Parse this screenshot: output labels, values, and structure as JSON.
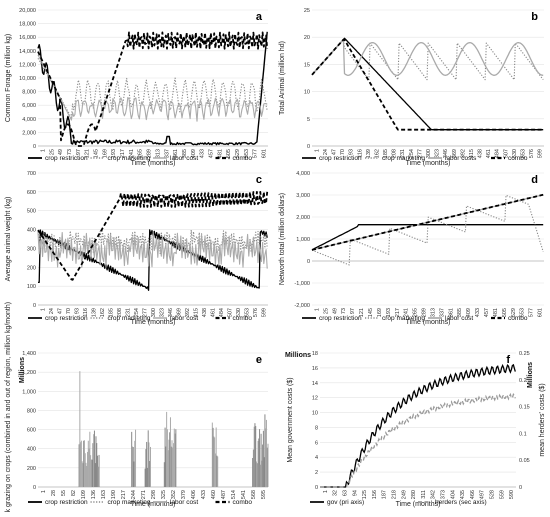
{
  "chart_data": [
    {
      "id": "a",
      "type": "line",
      "letter": "a",
      "ylabel": "Common Forage (million kg)",
      "xlabel": "Time (months)",
      "ylim": [
        0,
        20000
      ],
      "yticks": [
        "0",
        "2,000",
        "4,000",
        "6,000",
        "8,000",
        "10,000",
        "12,000",
        "14,000",
        "16,000",
        "18,000",
        "20,000"
      ],
      "xticks": [
        "1",
        "25",
        "49",
        "73",
        "97",
        "121",
        "145",
        "169",
        "193",
        "217",
        "241",
        "265",
        "289",
        "313",
        "337",
        "361",
        "385",
        "409",
        "433",
        "457",
        "481",
        "505",
        "529",
        "553",
        "577",
        "601"
      ],
      "legend": [
        "crop restriction",
        "crop marketing",
        "labor cost",
        "combo"
      ]
    },
    {
      "id": "b",
      "type": "line",
      "letter": "b",
      "ylabel": "Total Animal (million hd)",
      "xlabel": "Time (months)",
      "ylim": [
        0,
        25
      ],
      "yticks": [
        "0",
        "5",
        "10",
        "15",
        "20",
        "25"
      ],
      "xticks": [
        "1",
        "24",
        "47",
        "70",
        "93",
        "116",
        "139",
        "162",
        "185",
        "208",
        "231",
        "254",
        "277",
        "300",
        "323",
        "346",
        "369",
        "392",
        "415",
        "438",
        "461",
        "484",
        "507",
        "530",
        "553",
        "576",
        "599"
      ],
      "legend": [
        "crop restriction",
        "crop marketing",
        "labor costs",
        "combo"
      ]
    },
    {
      "id": "c",
      "type": "line",
      "letter": "c",
      "ylabel": "Average animal weight (kg)",
      "xlabel": "Time (months)",
      "ylim": [
        0,
        700
      ],
      "yticks": [
        "0",
        "100",
        "200",
        "300",
        "400",
        "500",
        "600",
        "700"
      ],
      "xticks": [
        "1",
        "24",
        "47",
        "70",
        "93",
        "116",
        "139",
        "162",
        "185",
        "208",
        "231",
        "254",
        "277",
        "300",
        "323",
        "346",
        "369",
        "392",
        "415",
        "438",
        "461",
        "484",
        "507",
        "530",
        "553",
        "576",
        "599"
      ],
      "legend": [
        "crop restriction",
        "crop marketing",
        "labor cost",
        "combo"
      ]
    },
    {
      "id": "d",
      "type": "line",
      "letter": "d",
      "ylabel": "Networth total (million dollars)",
      "xlabel": "Time (months)",
      "ylim": [
        -2000,
        4000
      ],
      "yticks": [
        "-2,000",
        "-1,000",
        "0",
        "1,000",
        "2,000",
        "3,000",
        "4,000"
      ],
      "xticks": [
        "1",
        "25",
        "49",
        "73",
        "97",
        "121",
        "145",
        "169",
        "193",
        "217",
        "241",
        "265",
        "289",
        "313",
        "337",
        "361",
        "385",
        "409",
        "433",
        "457",
        "481",
        "505",
        "529",
        "553",
        "577",
        "601"
      ],
      "legend": [
        "crop restriction",
        "crop marketing",
        "labor cost",
        "combo"
      ]
    },
    {
      "id": "e",
      "type": "bar",
      "letter": "e",
      "ylabel": "Livestock grazing on crops (combined in and out of region, million kg/month)",
      "unit_label": "Millions",
      "xlabel": "Time (months)",
      "ylim": [
        0,
        1400
      ],
      "yticks": [
        "0",
        "200",
        "400",
        "600",
        "800",
        "1,000",
        "1,200",
        "1,400"
      ],
      "xticks": [
        "1",
        "28",
        "55",
        "82",
        "109",
        "136",
        "163",
        "190",
        "217",
        "244",
        "271",
        "298",
        "325",
        "352",
        "379",
        "406",
        "433",
        "460",
        "487",
        "514",
        "541",
        "568",
        "595"
      ],
      "legend": [
        "crop restriction",
        "crop marketing",
        "labor cost",
        "combo"
      ]
    },
    {
      "id": "f",
      "type": "line",
      "letter": "f",
      "ylabel": "Mean government costs ($)",
      "ylabel2": "mean herders' costs ($)",
      "unit_label": "Millions",
      "unit_label2": "Millions",
      "xlabel": "Time (months)",
      "ylim": [
        0,
        18
      ],
      "ylim2": [
        0,
        0.25
      ],
      "yticks": [
        "0",
        "2",
        "4",
        "6",
        "8",
        "10",
        "12",
        "14",
        "16",
        "18"
      ],
      "yticks2": [
        "0",
        "0.05",
        "0.1",
        "0.15",
        "0.2",
        "0.25"
      ],
      "xticks": [
        "1",
        "32",
        "63",
        "94",
        "125",
        "156",
        "187",
        "218",
        "249",
        "280",
        "311",
        "342",
        "373",
        "404",
        "435",
        "466",
        "497",
        "528",
        "559",
        "590"
      ],
      "legend": [
        "gov (pri axis)",
        "herders (sec axis)"
      ]
    }
  ]
}
